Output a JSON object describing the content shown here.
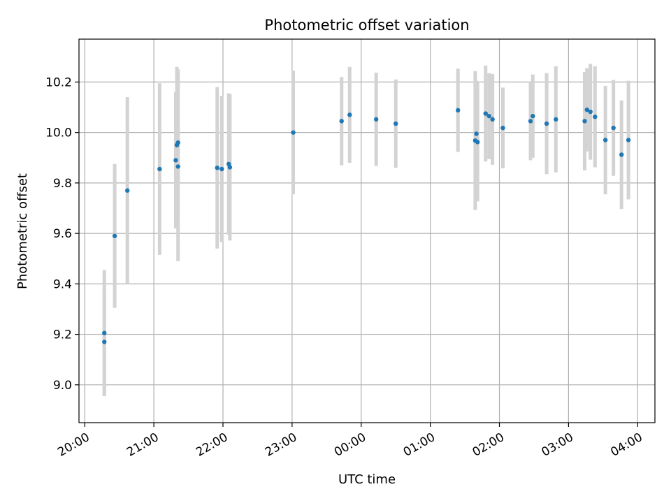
{
  "chart_data": {
    "type": "scatter",
    "title": "Photometric offset variation",
    "xlabel": "UTC time",
    "ylabel": "Photometric offset",
    "xlim": [
      "19:55",
      "04:15"
    ],
    "ylim": [
      8.85,
      10.37
    ],
    "grid": true,
    "x_ticks": [
      "20:00",
      "21:00",
      "22:00",
      "23:00",
      "00:00",
      "01:00",
      "02:00",
      "03:00",
      "04:00"
    ],
    "y_ticks": [
      "9.0",
      "9.2",
      "9.4",
      "9.6",
      "9.8",
      "10.0",
      "10.2"
    ],
    "colors": {
      "point": "#1f77b4",
      "errorbar": "#d3d3d3",
      "grid": "#b0b0b0"
    },
    "points": [
      {
        "x": "20:17",
        "y": 9.205,
        "err": 0.25
      },
      {
        "x": "20:17",
        "y": 9.17,
        "err": 0.21
      },
      {
        "x": "20:26",
        "y": 9.59,
        "err": 0.285
      },
      {
        "x": "20:37",
        "y": 9.77,
        "err": 0.37
      },
      {
        "x": "21:05",
        "y": 9.855,
        "err": 0.34
      },
      {
        "x": "21:19",
        "y": 9.89,
        "err": 0.27
      },
      {
        "x": "21:20",
        "y": 9.95,
        "err": 0.31
      },
      {
        "x": "21:21",
        "y": 9.96,
        "err": 0.29
      },
      {
        "x": "21:21",
        "y": 9.865,
        "err": 0.375
      },
      {
        "x": "21:55",
        "y": 9.86,
        "err": 0.32
      },
      {
        "x": "21:59",
        "y": 9.855,
        "err": 0.29
      },
      {
        "x": "22:05",
        "y": 9.875,
        "err": 0.28
      },
      {
        "x": "22:06",
        "y": 9.862,
        "err": 0.29
      },
      {
        "x": "23:01",
        "y": 10.0,
        "err": 0.245
      },
      {
        "x": "23:43",
        "y": 10.045,
        "err": 0.175
      },
      {
        "x": "23:50",
        "y": 10.07,
        "err": 0.19
      },
      {
        "x": "00:13",
        "y": 10.052,
        "err": 0.185
      },
      {
        "x": "00:30",
        "y": 10.035,
        "err": 0.175
      },
      {
        "x": "01:24",
        "y": 10.088,
        "err": 0.165
      },
      {
        "x": "01:39",
        "y": 9.968,
        "err": 0.275
      },
      {
        "x": "01:40",
        "y": 9.995,
        "err": 0.21
      },
      {
        "x": "01:41",
        "y": 9.962,
        "err": 0.235
      },
      {
        "x": "01:48",
        "y": 10.075,
        "err": 0.19
      },
      {
        "x": "01:51",
        "y": 10.065,
        "err": 0.17
      },
      {
        "x": "01:54",
        "y": 10.052,
        "err": 0.18
      },
      {
        "x": "02:03",
        "y": 10.018,
        "err": 0.16
      },
      {
        "x": "02:27",
        "y": 10.045,
        "err": 0.155
      },
      {
        "x": "02:29",
        "y": 10.065,
        "err": 0.165
      },
      {
        "x": "02:41",
        "y": 10.035,
        "err": 0.2
      },
      {
        "x": "02:49",
        "y": 10.052,
        "err": 0.21
      },
      {
        "x": "03:14",
        "y": 10.045,
        "err": 0.195
      },
      {
        "x": "03:16",
        "y": 10.09,
        "err": 0.165
      },
      {
        "x": "03:19",
        "y": 10.082,
        "err": 0.19
      },
      {
        "x": "03:23",
        "y": 10.062,
        "err": 0.2
      },
      {
        "x": "03:32",
        "y": 9.97,
        "err": 0.215
      },
      {
        "x": "03:39",
        "y": 10.018,
        "err": 0.19
      },
      {
        "x": "03:46",
        "y": 9.912,
        "err": 0.215
      },
      {
        "x": "03:52",
        "y": 9.97,
        "err": 0.235
      }
    ]
  }
}
